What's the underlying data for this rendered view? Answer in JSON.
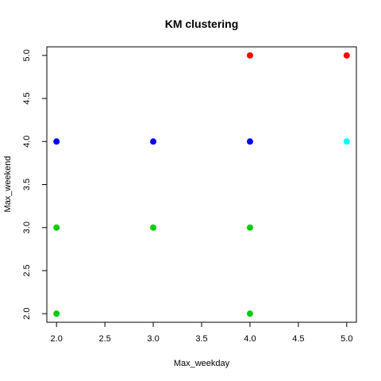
{
  "chart_data": {
    "type": "scatter",
    "title": "KM clustering",
    "xlabel": "Max_weekday",
    "ylabel": "Max_weekend",
    "xlim": [
      1.9,
      5.1
    ],
    "ylim": [
      1.9,
      5.1
    ],
    "x_ticks": [
      "2.0",
      "2.5",
      "3.0",
      "3.5",
      "4.0",
      "4.5",
      "5.0"
    ],
    "y_ticks": [
      "2.0",
      "2.5",
      "3.0",
      "3.5",
      "4.0",
      "4.5",
      "5.0"
    ],
    "grid": false,
    "legend": "none",
    "points": [
      {
        "x": 4,
        "y": 5,
        "color": "#ff0000"
      },
      {
        "x": 5,
        "y": 5,
        "color": "#ff0000"
      },
      {
        "x": 2,
        "y": 4,
        "color": "#0000ff"
      },
      {
        "x": 3,
        "y": 4,
        "color": "#0000ff"
      },
      {
        "x": 4,
        "y": 4,
        "color": "#0000ff"
      },
      {
        "x": 5,
        "y": 4,
        "color": "#00ffff"
      },
      {
        "x": 2,
        "y": 3,
        "color": "#00cd00"
      },
      {
        "x": 3,
        "y": 3,
        "color": "#00cd00"
      },
      {
        "x": 4,
        "y": 3,
        "color": "#00cd00"
      },
      {
        "x": 2,
        "y": 2,
        "color": "#00cd00"
      },
      {
        "x": 4,
        "y": 2,
        "color": "#00cd00"
      }
    ]
  }
}
